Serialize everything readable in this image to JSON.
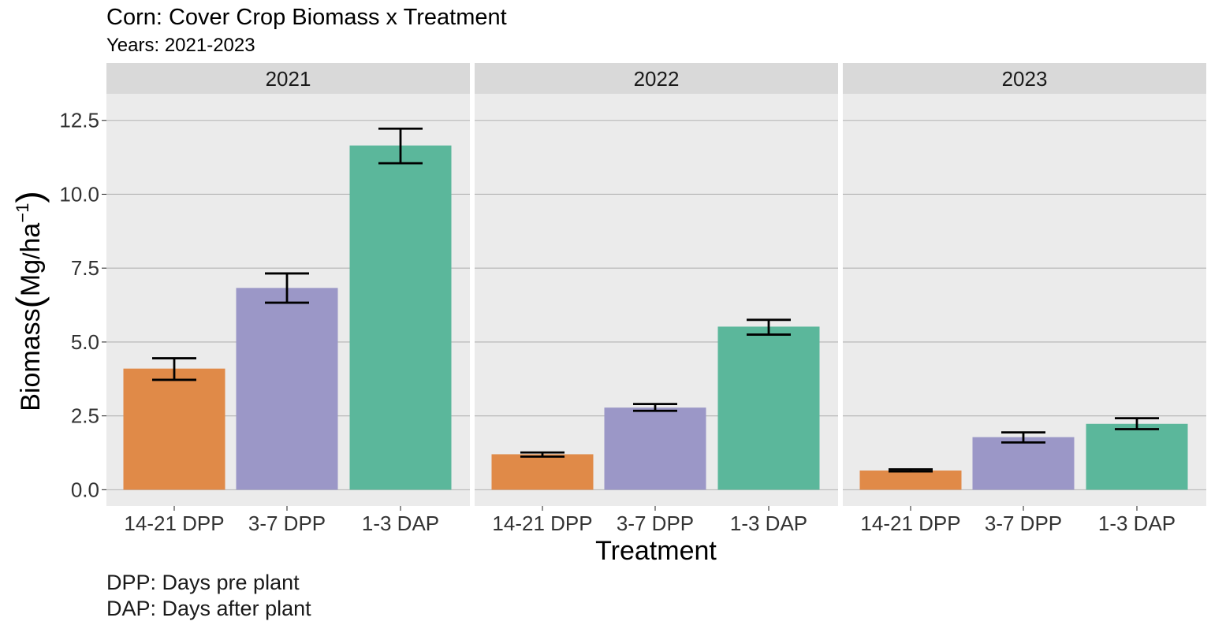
{
  "chart_data": {
    "type": "bar",
    "title": "Corn: Cover Crop Biomass x Treatment",
    "subtitle": "Years: 2021-2023",
    "xlabel": "Treatment",
    "ylabel_main": "Biomass",
    "ylabel_unit_base": "Mg",
    "ylabel_unit_den": "ha",
    "ylabel_unit_exp": "−1",
    "caption": [
      "DPP: Days pre plant",
      "DAP: Days after plant"
    ],
    "categories": [
      "14-21 DPP",
      "3-7 DPP",
      "1-3 DAP"
    ],
    "ylim": [
      -0.55,
      13.4
    ],
    "yticks": [
      0,
      2.5,
      5,
      7.5,
      10,
      12.5
    ],
    "ytick_labels": [
      "0.0",
      "2.5",
      "5.0",
      "7.5",
      "10.0",
      "12.5"
    ],
    "grid": true,
    "legend": "none",
    "colors": {
      "14-21 DPP": "#e08a48",
      "3-7 DPP": "#9b97c7",
      "1-3 DAP": "#5bb79b",
      "panel_bg": "#ebebeb",
      "strip_bg": "#d9d9d9",
      "grid": "#b3b3b3"
    },
    "panels": [
      {
        "label": "2021",
        "values": [
          4.1,
          6.83,
          11.65
        ],
        "err_low": [
          3.72,
          6.33,
          11.05
        ],
        "err_high": [
          4.45,
          7.32,
          12.22
        ]
      },
      {
        "label": "2022",
        "values": [
          1.2,
          2.78,
          5.52
        ],
        "err_low": [
          1.12,
          2.67,
          5.25
        ],
        "err_high": [
          1.26,
          2.9,
          5.75
        ]
      },
      {
        "label": "2023",
        "values": [
          0.65,
          1.78,
          2.23
        ],
        "err_low": [
          0.62,
          1.6,
          2.05
        ],
        "err_high": [
          0.69,
          1.94,
          2.42
        ]
      }
    ]
  }
}
